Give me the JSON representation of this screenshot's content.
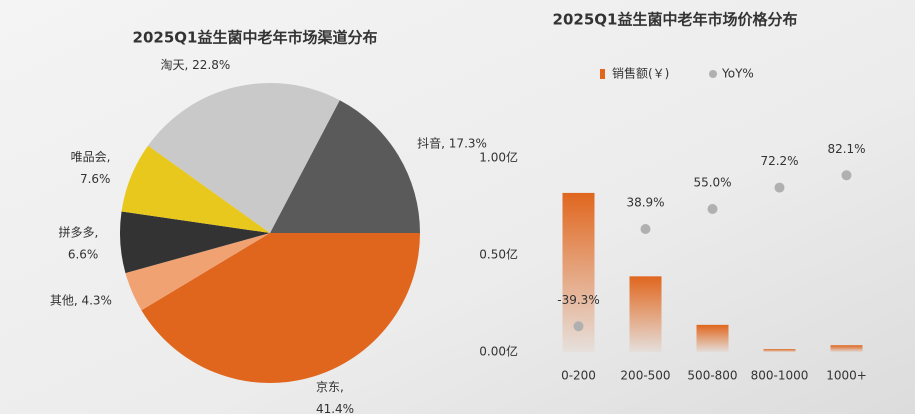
{
  "chart_data": [
    {
      "type": "pie",
      "title": "2025Q1益生菌中老年市场渠道分布",
      "categories": [
        "抖音",
        "京东",
        "其他",
        "拼多多",
        "唯品会",
        "淘天"
      ],
      "values": [
        17.3,
        41.4,
        4.3,
        6.6,
        7.6,
        22.8
      ],
      "labels": [
        [
          "抖音, 17.3%"
        ],
        [
          "京东,",
          "41.4%"
        ],
        [
          "其他, 4.3%"
        ],
        [
          "拼多多,",
          "6.6%"
        ],
        [
          "唯品会,",
          "7.6%"
        ],
        [
          "淘天, 22.8%"
        ]
      ],
      "colors": [
        "#5a5a5a",
        "#e0661e",
        "#f0a273",
        "#333333",
        "#e8c81c",
        "#c9c9c9"
      ]
    },
    {
      "type": "bar",
      "title": "2025Q1益生菌中老年市场价格分布",
      "categories": [
        "0-200",
        "200-500",
        "500-800",
        "800-1000",
        "1000+"
      ],
      "series": [
        {
          "name": "销售额(￥)",
          "type": "bar",
          "color": "#e0661e",
          "values": [
            0.82,
            0.39,
            0.14,
            0.015,
            0.035
          ]
        },
        {
          "name": "YoY%",
          "type": "scatter",
          "axis": "y2",
          "color": "#b0b0b0",
          "values": [
            -39.3,
            38.9,
            55.0,
            72.2,
            82.1
          ],
          "value_labels": [
            "-39.3%",
            "38.9%",
            "55.0%",
            "72.2%",
            "82.1%"
          ]
        }
      ],
      "ylim": [
        0,
        1
      ],
      "yticks": [
        {
          "value": 0,
          "label": "0.00亿"
        },
        {
          "value": 0.5,
          "label": "0.50亿"
        },
        {
          "value": 1,
          "label": "1.00亿"
        }
      ],
      "y2lim": [
        -60,
        96
      ]
    }
  ]
}
